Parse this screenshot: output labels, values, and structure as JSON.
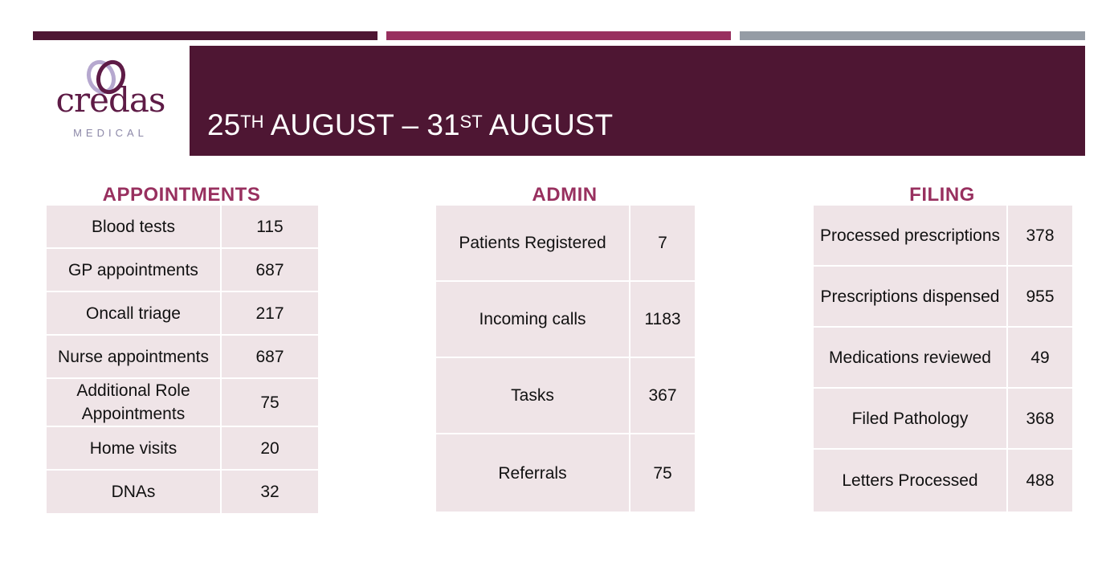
{
  "accent_colors": {
    "bar_left": "#4e1633",
    "bar_middle": "#98305f",
    "bar_right": "#959ca5",
    "header_background": "#4e1633",
    "section_title": "#98305f",
    "table_cell": "#efe4e7"
  },
  "logo": {
    "word": "credas",
    "sub": "MEDICAL",
    "icon": "interlocking-rings-logo-mark"
  },
  "header": {
    "title_part1": "25",
    "title_sup1": "TH",
    "title_part2": " AUGUST – 31",
    "title_sup2": "ST",
    "title_part3": " AUGUST"
  },
  "appointments": {
    "title": "APPOINTMENTS",
    "rows": [
      {
        "label": "Blood tests",
        "value": "115"
      },
      {
        "label": "GP appointments",
        "value": "687"
      },
      {
        "label": "Oncall triage",
        "value": "217"
      },
      {
        "label": "Nurse appointments",
        "value": "687"
      },
      {
        "label": "Additional Role Appointments",
        "value": "75"
      },
      {
        "label": "Home visits",
        "value": "20"
      },
      {
        "label": "DNAs",
        "value": "32"
      }
    ]
  },
  "admin": {
    "title": "ADMIN",
    "rows": [
      {
        "label": "Patients Registered",
        "value": "7"
      },
      {
        "label": "Incoming calls",
        "value": "1183"
      },
      {
        "label": "Tasks",
        "value": "367"
      },
      {
        "label": "Referrals",
        "value": "75"
      }
    ]
  },
  "filing": {
    "title": "FILING",
    "rows": [
      {
        "label": "Processed prescriptions",
        "value": "378"
      },
      {
        "label": "Prescriptions dispensed",
        "value": "955"
      },
      {
        "label": "Medications reviewed",
        "value": "49"
      },
      {
        "label": "Filed Pathology",
        "value": "368"
      },
      {
        "label": "Letters Processed",
        "value": "488"
      }
    ]
  }
}
